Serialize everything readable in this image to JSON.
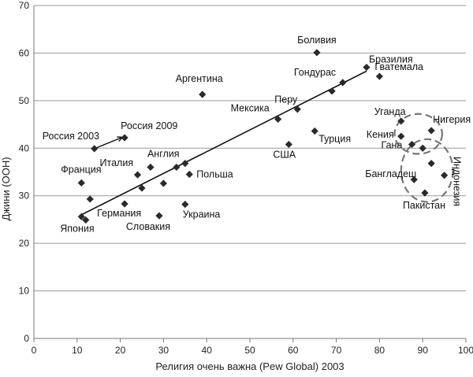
{
  "chart_data": {
    "type": "scatter",
    "xlabel": "Религия очень важна (Pew Global) 2003",
    "ylabel": "Джини (ООН)",
    "xlim": [
      0,
      100
    ],
    "ylim": [
      0,
      70
    ],
    "xticks": [
      0,
      10,
      20,
      30,
      40,
      50,
      60,
      70,
      80,
      90,
      100
    ],
    "yticks": [
      0,
      10,
      20,
      30,
      40,
      50,
      60,
      70
    ],
    "grid": "horizontal",
    "points": [
      {
        "label": "Боливия",
        "x": 65.5,
        "y": 60.1
      },
      {
        "label": "Бразилия",
        "x": 77,
        "y": 57
      },
      {
        "label": "Гватемала",
        "x": 80,
        "y": 55.1
      },
      {
        "label": "Гондурас",
        "x": 71.5,
        "y": 53.8
      },
      {
        "label": "",
        "x": 69,
        "y": 52
      },
      {
        "label": "Аргентина",
        "x": 39,
        "y": 51.3
      },
      {
        "label": "Перу",
        "x": 61,
        "y": 48.2
      },
      {
        "label": "Мексика",
        "x": 56.5,
        "y": 46.1
      },
      {
        "label": "Уганда",
        "x": 85,
        "y": 45.7
      },
      {
        "label": "Нигерия",
        "x": 92,
        "y": 43.7
      },
      {
        "label": "Турция",
        "x": 65,
        "y": 43.6
      },
      {
        "label": "Кения",
        "x": 85,
        "y": 42.5
      },
      {
        "label": "Россия 2009",
        "x": 21,
        "y": 42.2
      },
      {
        "label": "Гана",
        "x": 87.5,
        "y": 40.8
      },
      {
        "label": "США",
        "x": 59,
        "y": 40.8
      },
      {
        "label": "",
        "x": 90,
        "y": 40
      },
      {
        "label": "Россия 2003",
        "x": 14,
        "y": 39.9
      },
      {
        "label": "Англия",
        "x": 27,
        "y": 36
      },
      {
        "label": "",
        "x": 35,
        "y": 36.8
      },
      {
        "label": "",
        "x": 33,
        "y": 36
      },
      {
        "label": "",
        "x": 92,
        "y": 36.8
      },
      {
        "label": "Италия",
        "x": 24,
        "y": 34.4
      },
      {
        "label": "Польша",
        "x": 36,
        "y": 34.5
      },
      {
        "label": "",
        "x": 95,
        "y": 34.3
      },
      {
        "label": "Франция",
        "x": 11,
        "y": 32.7
      },
      {
        "label": "Бангладеш",
        "x": 88,
        "y": 33.4
      },
      {
        "label": "",
        "x": 30,
        "y": 32.6
      },
      {
        "label": "",
        "x": 25,
        "y": 31.6
      },
      {
        "label": "Пакистан",
        "x": 90.5,
        "y": 30.6
      },
      {
        "label": "",
        "x": 13,
        "y": 29.3
      },
      {
        "label": "Германия",
        "x": 21,
        "y": 28.3
      },
      {
        "label": "Украина",
        "x": 35,
        "y": 28.2
      },
      {
        "label": "Словакия",
        "x": 29,
        "y": 25.8
      },
      {
        "label": "Япония",
        "x": 11,
        "y": 25.6
      },
      {
        "label": "",
        "x": 12,
        "y": 24.9
      }
    ],
    "trendline": {
      "from": [
        11,
        26
      ],
      "to": [
        77,
        56.2
      ]
    },
    "annotations": [
      {
        "type": "arrow",
        "from": [
          14,
          39.9
        ],
        "to": [
          20.5,
          42.3
        ]
      },
      {
        "type": "dashed-ellipse",
        "center": [
          89,
          43
        ],
        "rx": 5.5,
        "ry": 4.2
      },
      {
        "type": "dashed-ellipse",
        "center": [
          91,
          35.3
        ],
        "rx": 6,
        "ry": 6.6
      }
    ],
    "rotated_labels": [
      {
        "label": "Индонезия",
        "x": 97.2,
        "y": 33
      }
    ]
  }
}
